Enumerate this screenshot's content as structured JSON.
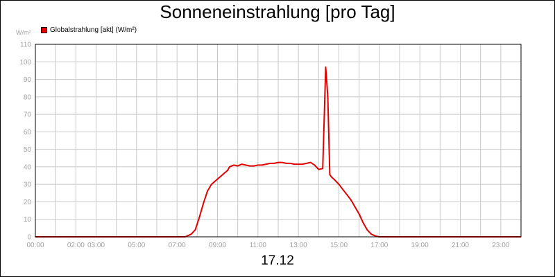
{
  "chart_data": {
    "type": "line",
    "title": "Sonneneinstrahlung [pro Tag]",
    "xlabel": "17.12",
    "ylabel": "W/m²",
    "ylim": [
      0,
      110
    ],
    "yticks": [
      0,
      10,
      20,
      30,
      40,
      50,
      60,
      70,
      80,
      90,
      100,
      110
    ],
    "xlim": [
      0,
      24
    ],
    "xticks": [
      {
        "h": 0,
        "label": "00:00"
      },
      {
        "h": 2,
        "label": "02:00"
      },
      {
        "h": 3,
        "label": "03:00"
      },
      {
        "h": 5,
        "label": "05:00"
      },
      {
        "h": 7,
        "label": "07:00"
      },
      {
        "h": 9,
        "label": "09:00"
      },
      {
        "h": 11,
        "label": "11:00"
      },
      {
        "h": 13,
        "label": "13:00"
      },
      {
        "h": 15,
        "label": "15:00"
      },
      {
        "h": 17,
        "label": "17:00"
      },
      {
        "h": 19,
        "label": "19:00"
      },
      {
        "h": 21,
        "label": "21:00"
      },
      {
        "h": 23,
        "label": "23:00"
      }
    ],
    "grid": true,
    "legend_position": "top-left",
    "series": [
      {
        "name": "Globalstrahlung [akt] (W/m²)",
        "color": "#e00000",
        "x": [
          0,
          7.4,
          7.7,
          7.9,
          8.1,
          8.3,
          8.5,
          8.7,
          8.9,
          9.1,
          9.3,
          9.5,
          9.6,
          9.8,
          10.0,
          10.2,
          10.4,
          10.6,
          10.8,
          11.0,
          11.2,
          11.4,
          11.6,
          11.8,
          12.0,
          12.2,
          12.4,
          12.6,
          12.8,
          13.0,
          13.2,
          13.4,
          13.6,
          13.8,
          14.0,
          14.2,
          14.35,
          14.45,
          14.55,
          14.65,
          14.75,
          15.0,
          15.2,
          15.4,
          15.6,
          15.8,
          16.0,
          16.2,
          16.4,
          16.6,
          16.8,
          17.0,
          17.2,
          24
        ],
        "y": [
          0,
          0,
          1.5,
          4,
          11,
          19,
          26,
          30,
          32,
          34,
          36,
          38,
          40,
          41,
          40.5,
          41.5,
          41,
          40.5,
          40.5,
          41,
          41,
          41.5,
          42,
          42,
          42.5,
          42.5,
          42,
          42,
          41.5,
          41.5,
          41.5,
          42,
          42.5,
          41,
          38.5,
          39,
          97,
          80,
          35.5,
          34,
          33,
          30,
          27,
          24,
          21,
          17,
          13,
          8,
          4,
          1.5,
          0.5,
          0,
          0,
          0
        ]
      }
    ]
  }
}
